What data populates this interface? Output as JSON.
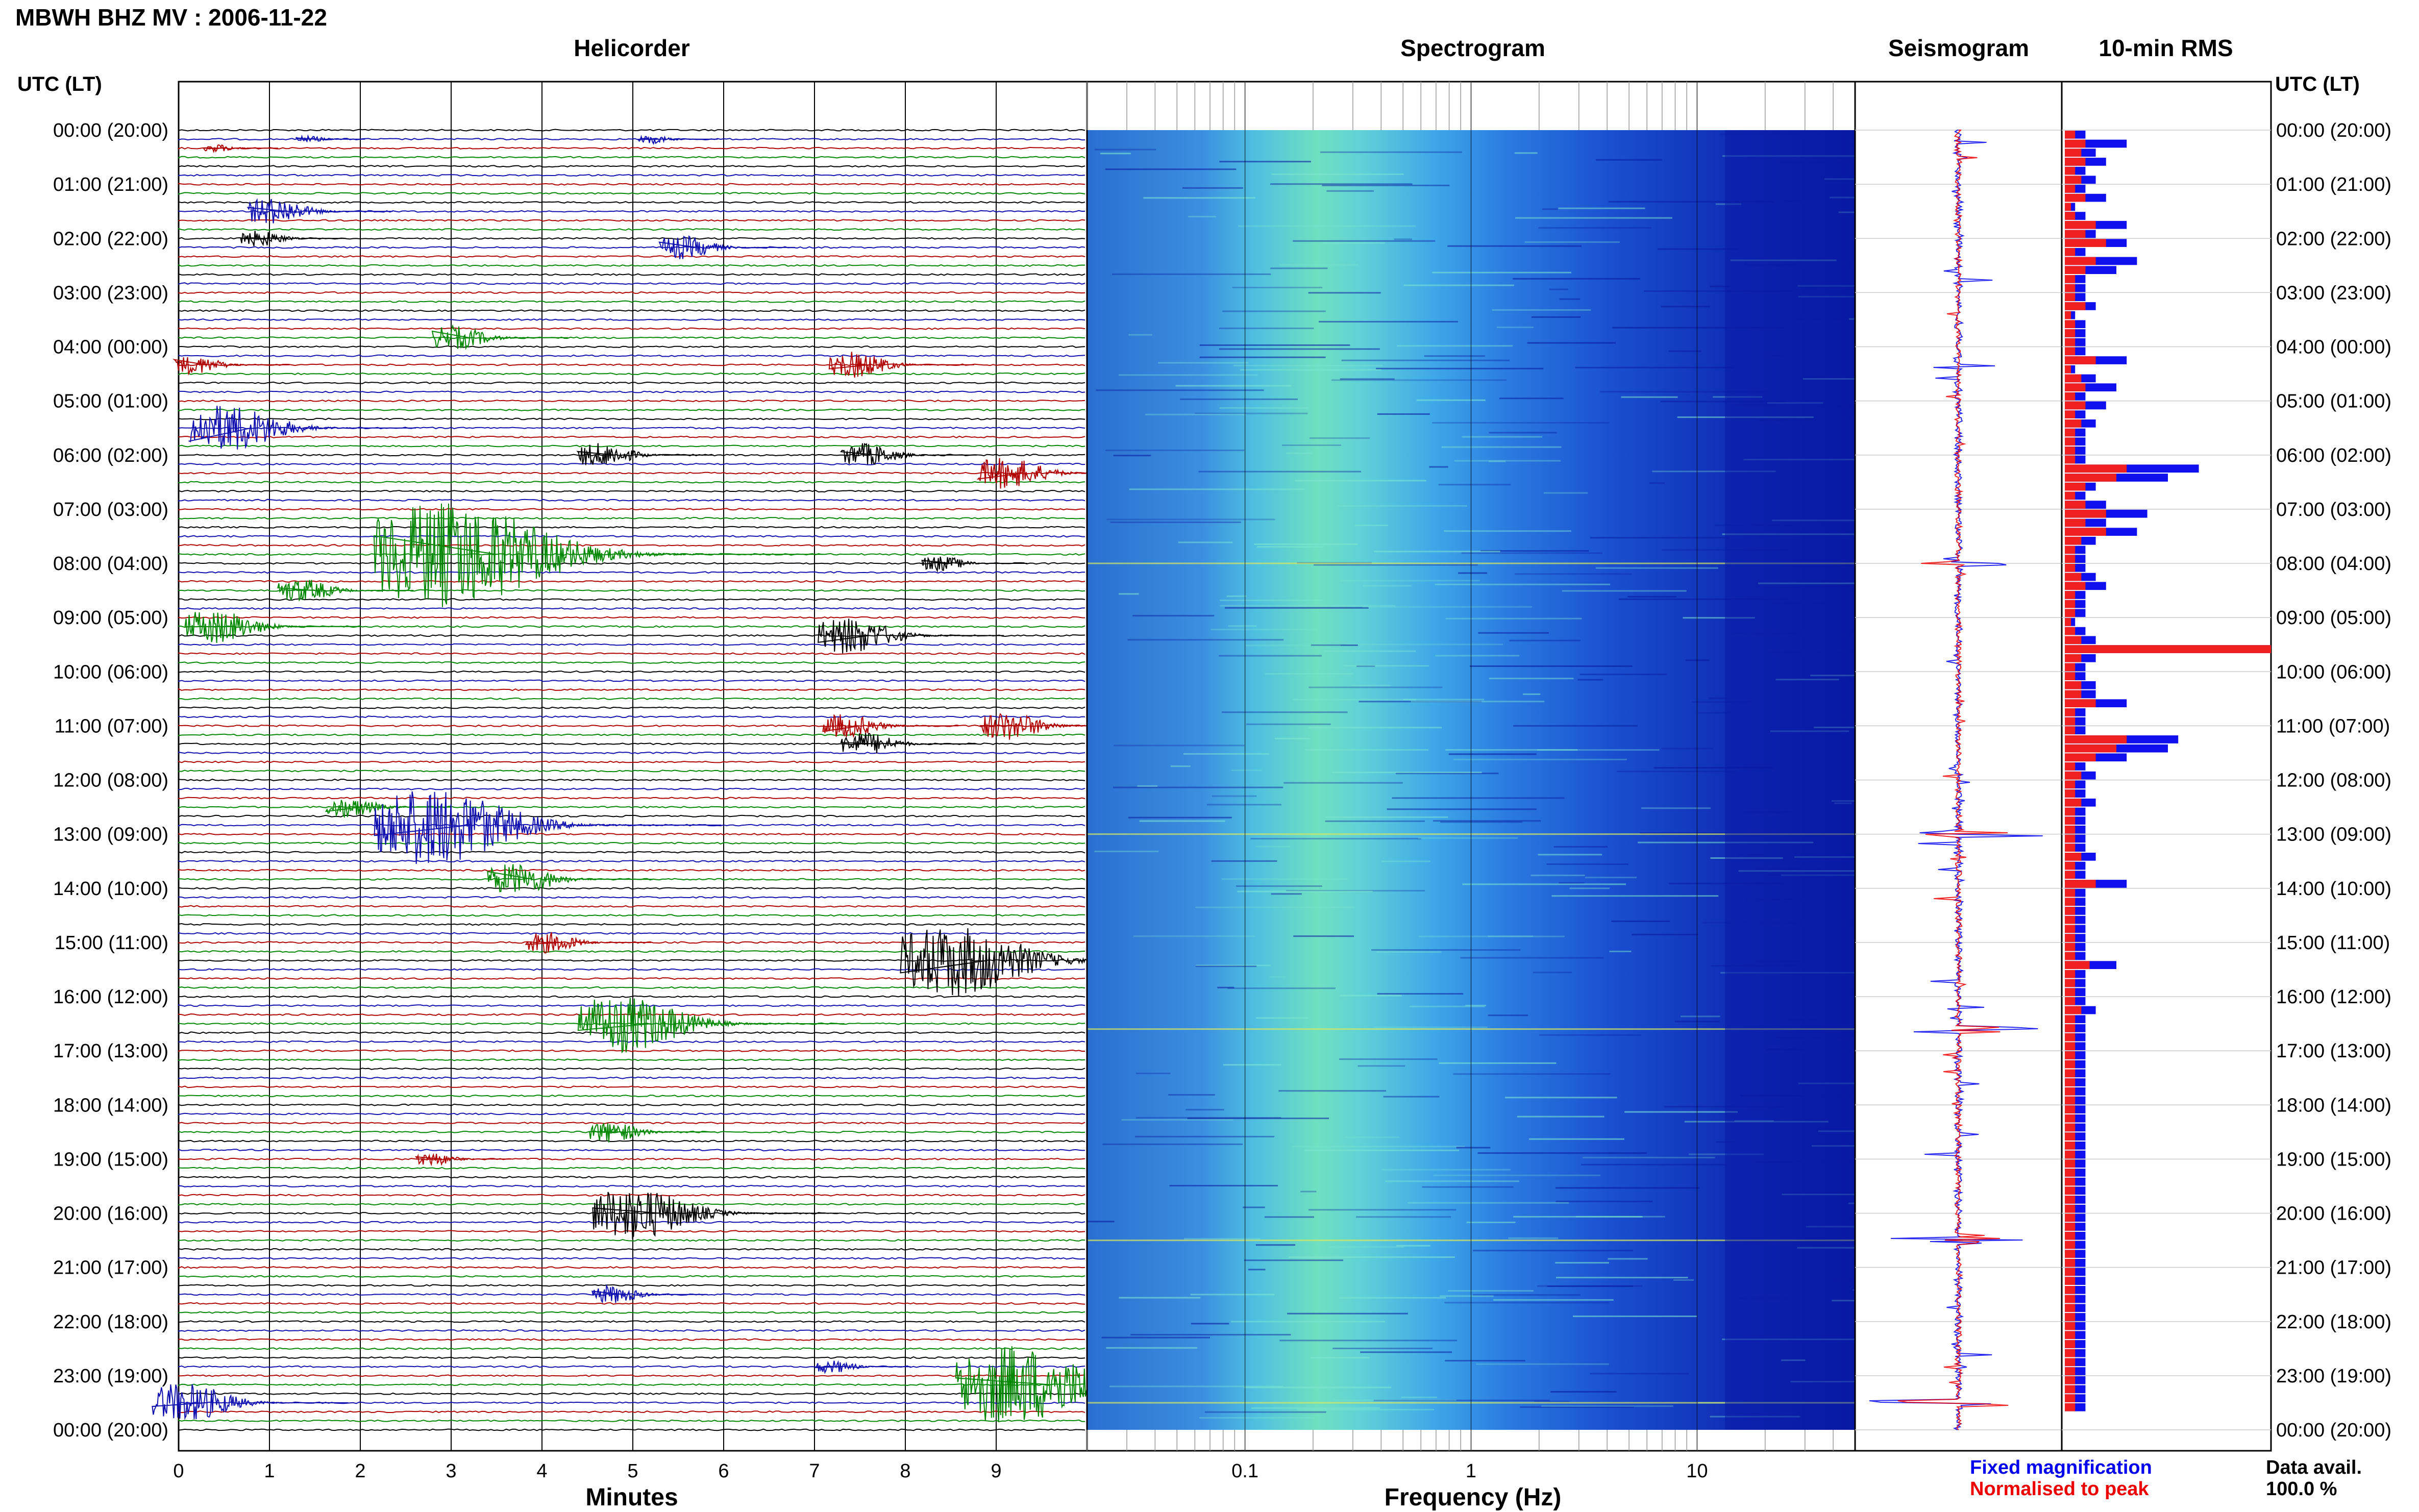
{
  "header": {
    "station": "MBWH BHZ MV : 2006-11-22",
    "axis_left": "UTC (LT)",
    "axis_right": "UTC (LT)"
  },
  "panels": {
    "helicorder": "Helicorder",
    "spectrogram": "Spectrogram",
    "seismogram": "Seismogram",
    "rms": "10-min RMS"
  },
  "footer": {
    "minutes_label": "Minutes",
    "frequency_label": "Frequency (Hz)",
    "legend_fixed": "Fixed magnification",
    "legend_norm": "Normalised to peak",
    "data_avail_label": "Data avail.",
    "data_avail_value": "100.0 %"
  },
  "colors": {
    "trace_cycle": [
      "#000000",
      "#1010b0",
      "#b00000",
      "#008800"
    ],
    "fixed": "#0000ee",
    "normalised": "#ee0000",
    "grid": "#000000"
  },
  "chart_data": [
    {
      "type": "helicorder",
      "title": "Helicorder",
      "xlabel": "Minutes",
      "x_ticks": [
        "0",
        "1",
        "2",
        "3",
        "4",
        "5",
        "6",
        "7",
        "8",
        "9"
      ],
      "xlim": [
        0,
        10
      ],
      "y_ticks": [
        "00:00 (20:00)",
        "01:00 (21:00)",
        "02:00 (22:00)",
        "03:00 (23:00)",
        "04:00 (00:00)",
        "05:00 (01:00)",
        "06:00 (02:00)",
        "07:00 (03:00)",
        "08:00 (04:00)",
        "09:00 (05:00)",
        "10:00 (06:00)",
        "11:00 (07:00)",
        "12:00 (08:00)",
        "13:00 (09:00)",
        "14:00 (10:00)",
        "15:00 (11:00)",
        "16:00 (12:00)",
        "17:00 (13:00)",
        "18:00 (14:00)",
        "19:00 (15:00)",
        "20:00 (16:00)",
        "21:00 (17:00)",
        "22:00 (18:00)",
        "23:00 (19:00)",
        "00:00 (20:00)"
      ],
      "lines_per_hour": 6,
      "events": [
        {
          "hour": 0.17,
          "minute": 1.5,
          "amp": 0.25
        },
        {
          "hour": 0.17,
          "minute": 5.3,
          "amp": 0.35
        },
        {
          "hour": 0.33,
          "minute": 0.5,
          "amp": 0.3
        },
        {
          "hour": 1.5,
          "minute": 1.2,
          "amp": 1.0
        },
        {
          "hour": 2.0,
          "minute": 1.0,
          "amp": 0.6
        },
        {
          "hour": 2.1,
          "minute": 5.7,
          "amp": 0.9
        },
        {
          "hour": 3.8,
          "minute": 3.2,
          "amp": 0.9
        },
        {
          "hour": 4.4,
          "minute": 0.3,
          "amp": 0.7
        },
        {
          "hour": 4.4,
          "minute": 7.6,
          "amp": 1.0
        },
        {
          "hour": 5.5,
          "minute": 0.8,
          "amp": 1.8
        },
        {
          "hour": 6.0,
          "minute": 4.8,
          "amp": 0.9
        },
        {
          "hour": 6.0,
          "minute": 7.7,
          "amp": 0.9
        },
        {
          "hour": 6.3,
          "minute": 9.3,
          "amp": 1.2
        },
        {
          "hour": 7.8,
          "minute": 3.5,
          "amp": 4.0
        },
        {
          "hour": 8.0,
          "minute": 8.5,
          "amp": 0.6
        },
        {
          "hour": 8.5,
          "minute": 1.5,
          "amp": 0.9
        },
        {
          "hour": 9.2,
          "minute": 0.6,
          "amp": 1.3
        },
        {
          "hour": 9.3,
          "minute": 7.6,
          "amp": 1.4
        },
        {
          "hour": 11.0,
          "minute": 7.5,
          "amp": 0.9
        },
        {
          "hour": 11.0,
          "minute": 9.3,
          "amp": 1.1
        },
        {
          "hour": 11.3,
          "minute": 7.7,
          "amp": 0.9
        },
        {
          "hour": 12.5,
          "minute": 2.0,
          "amp": 0.8
        },
        {
          "hour": 12.8,
          "minute": 3.2,
          "amp": 3.0
        },
        {
          "hour": 13.8,
          "minute": 3.9,
          "amp": 1.2
        },
        {
          "hour": 15.0,
          "minute": 4.2,
          "amp": 0.8
        },
        {
          "hour": 15.3,
          "minute": 8.9,
          "amp": 2.7
        },
        {
          "hour": 16.5,
          "minute": 5.2,
          "amp": 2.2
        },
        {
          "hour": 18.5,
          "minute": 4.9,
          "amp": 0.8
        },
        {
          "hour": 19.0,
          "minute": 2.9,
          "amp": 0.5
        },
        {
          "hour": 20.0,
          "minute": 5.3,
          "amp": 2.0
        },
        {
          "hour": 21.5,
          "minute": 4.9,
          "amp": 0.7
        },
        {
          "hour": 22.8,
          "minute": 7.3,
          "amp": 0.5
        },
        {
          "hour": 23.2,
          "minute": 9.6,
          "amp": 3.0
        },
        {
          "hour": 23.5,
          "minute": 0.3,
          "amp": 1.5
        }
      ]
    },
    {
      "type": "heatmap",
      "title": "Spectrogram",
      "xlabel": "Frequency (Hz)",
      "x_scale": "log",
      "xlim": [
        0.02,
        50
      ],
      "x_ticks": [
        "0.1",
        "1",
        "10"
      ],
      "x_tick_values": [
        0.1,
        1,
        10
      ]
    },
    {
      "type": "line",
      "title": "Seismogram",
      "series": [
        {
          "name": "Fixed magnification"
        },
        {
          "name": "Normalised to peak"
        }
      ],
      "spike_hours": [
        8.0,
        13.0,
        16.6,
        20.5,
        23.5
      ]
    },
    {
      "type": "bar",
      "title": "10-min RMS",
      "bins_per_hour": 6,
      "series": [
        {
          "name": "Fixed magnification",
          "values": [
            0.1,
            0.3,
            0.15,
            0.2,
            0.1,
            0.15,
            0.1,
            0.2,
            0.05,
            0.1,
            0.3,
            0.15,
            0.3,
            0.1,
            0.35,
            0.25,
            0.1,
            0.1,
            0.1,
            0.15,
            0.05,
            0.1,
            0.1,
            0.1,
            0.1,
            0.3,
            0.05,
            0.15,
            0.25,
            0.1,
            0.2,
            0.1,
            0.15,
            0.1,
            0.1,
            0.1,
            0.1,
            0.65,
            0.5,
            0.15,
            0.1,
            0.2,
            0.4,
            0.2,
            0.35,
            0.15,
            0.1,
            0.1,
            0.1,
            0.15,
            0.2,
            0.1,
            0.1,
            0.1,
            0.05,
            0.1,
            0.15,
            1.0,
            0.15,
            0.1,
            0.1,
            0.15,
            0.15,
            0.3,
            0.1,
            0.1,
            0.1,
            0.55,
            0.5,
            0.3,
            0.1,
            0.15,
            0.1,
            0.1,
            0.15,
            0.1,
            0.1,
            0.1,
            0.1,
            0.1,
            0.15,
            0.1,
            0.1,
            0.3,
            0.1,
            0.1,
            0.1,
            0.1,
            0.1,
            0.1,
            0.1,
            0.1,
            0.25,
            0.1,
            0.1,
            0.1,
            0.1,
            0.15,
            0.1,
            0.1,
            0.1,
            0.1,
            0.1,
            0.1,
            0.1,
            0.1,
            0.1,
            0.1,
            0.1,
            0.1,
            0.1,
            0.1,
            0.1,
            0.1,
            0.1,
            0.1,
            0.1,
            0.1,
            0.1,
            0.1,
            0.1,
            0.1,
            0.1,
            0.1,
            0.1,
            0.1,
            0.1,
            0.1,
            0.1,
            0.1,
            0.1,
            0.1,
            0.1,
            0.1,
            0.1,
            0.1,
            0.1,
            0.1,
            0.1,
            0.1,
            0.1,
            0.1
          ],
          "note": ""
        },
        {
          "name": "Normalised to peak",
          "values": [
            0.05,
            0.1,
            0.08,
            0.1,
            0.05,
            0.08,
            0.05,
            0.1,
            0.03,
            0.05,
            0.15,
            0.1,
            0.2,
            0.05,
            0.15,
            0.1,
            0.05,
            0.05,
            0.05,
            0.1,
            0.03,
            0.05,
            0.05,
            0.05,
            0.05,
            0.15,
            0.03,
            0.08,
            0.1,
            0.05,
            0.1,
            0.05,
            0.08,
            0.05,
            0.05,
            0.05,
            0.05,
            0.3,
            0.25,
            0.1,
            0.05,
            0.1,
            0.2,
            0.1,
            0.2,
            0.08,
            0.05,
            0.05,
            0.05,
            0.08,
            0.1,
            0.05,
            0.05,
            0.05,
            0.03,
            0.05,
            0.08,
            1.0,
            0.08,
            0.05,
            0.05,
            0.08,
            0.08,
            0.15,
            0.05,
            0.05,
            0.05,
            0.3,
            0.25,
            0.15,
            0.05,
            0.08,
            0.05,
            0.05,
            0.08,
            0.05,
            0.05,
            0.05,
            0.05,
            0.05,
            0.08,
            0.05,
            0.05,
            0.15,
            0.05,
            0.05,
            0.05,
            0.05,
            0.05,
            0.05,
            0.05,
            0.05,
            0.12,
            0.05,
            0.05,
            0.05,
            0.05,
            0.08,
            0.05,
            0.05,
            0.05,
            0.05,
            0.05,
            0.05,
            0.05,
            0.05,
            0.05,
            0.05,
            0.05,
            0.05,
            0.05,
            0.05,
            0.05,
            0.05,
            0.05,
            0.05,
            0.05,
            0.05,
            0.05,
            0.05,
            0.05,
            0.05,
            0.05,
            0.05,
            0.05,
            0.05,
            0.05,
            0.05,
            0.05,
            0.05,
            0.05,
            0.05,
            0.05,
            0.05,
            0.05,
            0.05,
            0.05,
            0.05,
            0.05,
            0.05,
            0.05,
            0.05
          ]
        }
      ]
    }
  ]
}
